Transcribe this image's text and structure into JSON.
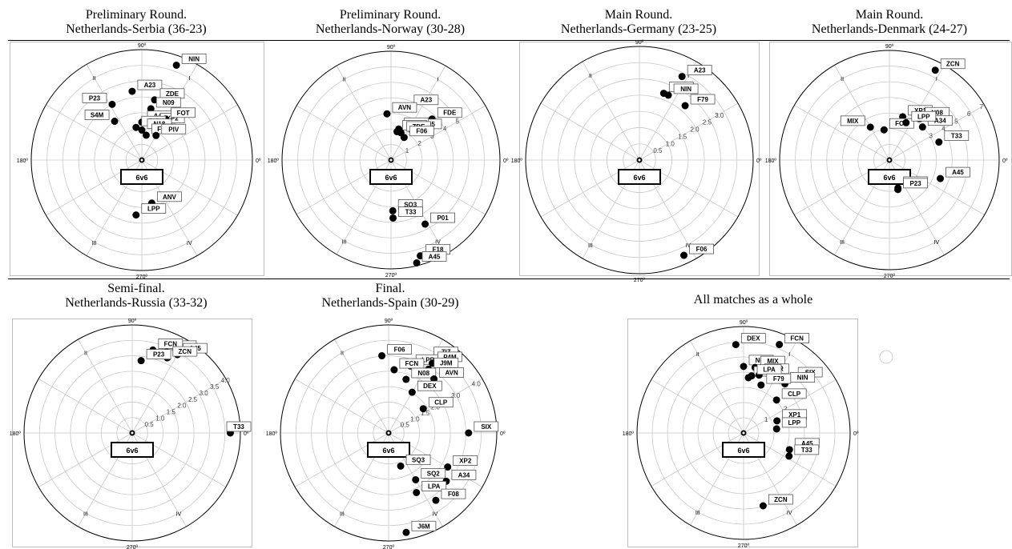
{
  "panels": [
    {
      "title1": "Preliminary Round.",
      "title2": "Netherlands-Serbia (36-23)"
    },
    {
      "title1": "Preliminary Round.",
      "title2": "Netherlands-Norway (30-28)"
    },
    {
      "title1": "Main Round.",
      "title2": "Netherlands-Germany (23-25)"
    },
    {
      "title1": "Main Round.",
      "title2": "Netherlands-Denmark (24-27)"
    },
    {
      "title1": "Semi-final.",
      "title2": "Netherlands-Russia (33-32)"
    },
    {
      "title1": "Final.",
      "title2": "Netherlands-Spain (30-29)"
    },
    {
      "title1": "All matches as a whole",
      "title2": ""
    }
  ],
  "chart_data": [
    {
      "type": "scatter",
      "coordinate_system": "polar",
      "axis_labels": [
        "90º",
        "180º",
        "0º",
        "270º"
      ],
      "quadrant_labels": [
        "I",
        "II",
        "III",
        "IV"
      ],
      "radial_ticks": [],
      "center_label": "6v6",
      "points": [
        {
          "label": "NIN",
          "angle": 70,
          "radius": 6.4
        },
        {
          "label": "A23",
          "angle": 98,
          "radius": 4.4
        },
        {
          "label": "P23",
          "angle": 118,
          "radius": 4.0
        },
        {
          "label": "ZDE",
          "angle": 78,
          "radius": 3.9
        },
        {
          "label": "S4M",
          "angle": 125,
          "radius": 3.0
        },
        {
          "label": "N09",
          "angle": 80,
          "radius": 3.3
        },
        {
          "label": "A45",
          "angle": 90,
          "radius": 2.4
        },
        {
          "label": "XP2",
          "angle": 70,
          "radius": 2.4
        },
        {
          "label": "FOT",
          "angle": 60,
          "radius": 3.0
        },
        {
          "label": "F18",
          "angle": 100,
          "radius": 2.1
        },
        {
          "label": "N18",
          "angle": 90,
          "radius": 1.9
        },
        {
          "label": "FCN",
          "angle": 80,
          "radius": 1.6
        },
        {
          "label": "PIV",
          "angle": 60,
          "radius": 1.8
        },
        {
          "label": "ANV",
          "angle": 283,
          "radius": 2.8
        },
        {
          "label": "LPP",
          "angle": 264,
          "radius": 3.5
        }
      ]
    },
    {
      "type": "scatter",
      "coordinate_system": "polar",
      "axis_labels": [
        "90º",
        "180º",
        "0º",
        "270º"
      ],
      "quadrant_labels": [
        "I",
        "II",
        "III",
        "IV"
      ],
      "radial_ticks": [
        "1",
        "2",
        "3",
        "4",
        "5"
      ],
      "center_label": "6v6",
      "points": [
        {
          "label": "A23",
          "angle": 72,
          "radius": 3.9
        },
        {
          "label": "AVN",
          "angle": 95,
          "radius": 3.2
        },
        {
          "label": "FDE",
          "angle": 45,
          "radius": 4.0
        },
        {
          "label": "F05",
          "angle": 55,
          "radius": 2.5
        },
        {
          "label": "NIN",
          "angle": 76,
          "radius": 2.2
        },
        {
          "label": "N79",
          "angle": 78,
          "radius": 2.0
        },
        {
          "label": "ZDE",
          "angle": 70,
          "radius": 2.0
        },
        {
          "label": "F06",
          "angle": 60,
          "radius": 1.8
        },
        {
          "label": "SQ3",
          "angle": 272,
          "radius": 3.5
        },
        {
          "label": "T33",
          "angle": 272,
          "radius": 4.0
        },
        {
          "label": "P01",
          "angle": 298,
          "radius": 5.0
        },
        {
          "label": "F18",
          "angle": 287,
          "radius": 6.9
        },
        {
          "label": "A45",
          "angle": 284,
          "radius": 7.3
        }
      ]
    },
    {
      "type": "scatter",
      "coordinate_system": "polar",
      "axis_labels": [
        "90º",
        "180º",
        "0º",
        "270º"
      ],
      "quadrant_labels": [
        "I",
        "II",
        "III",
        "IV"
      ],
      "radial_ticks": [
        "0.5",
        "1.0",
        "1.5",
        "2.0",
        "2.5",
        "3.0"
      ],
      "center_label": "6v6",
      "points": [
        {
          "label": "A23",
          "angle": 63,
          "radius": 3.3
        },
        {
          "label": "N79",
          "angle": 70,
          "radius": 2.5
        },
        {
          "label": "NIN",
          "angle": 66,
          "radius": 2.5
        },
        {
          "label": "F79",
          "angle": 50,
          "radius": 2.5
        },
        {
          "label": "F06",
          "angle": 295,
          "radius": 3.7
        }
      ]
    },
    {
      "type": "scatter",
      "coordinate_system": "polar",
      "axis_labels": [
        "90º",
        "180º",
        "0º",
        "270º"
      ],
      "quadrant_labels": [
        "I",
        "II",
        "III",
        "IV"
      ],
      "radial_ticks": [
        "3",
        "4",
        "5",
        "6",
        "7"
      ],
      "center_label": "6v6",
      "points": [
        {
          "label": "ZCN",
          "angle": 63,
          "radius": 6.9
        },
        {
          "label": "XP1",
          "angle": 73,
          "radius": 3.1
        },
        {
          "label": "N08",
          "angle": 54,
          "radius": 3.5
        },
        {
          "label": "A34",
          "angle": 45,
          "radius": 3.2
        },
        {
          "label": "MIX",
          "angle": 120,
          "radius": 2.6
        },
        {
          "label": "FCN",
          "angle": 100,
          "radius": 2.1
        },
        {
          "label": "LPP",
          "angle": 66,
          "radius": 2.8
        },
        {
          "label": "T33",
          "angle": 20,
          "radius": 3.6
        },
        {
          "label": "A45",
          "angle": 340,
          "radius": 3.7
        },
        {
          "label": "N18",
          "angle": 287,
          "radius": 2.0
        },
        {
          "label": "P23",
          "angle": 286,
          "radius": 2.1
        }
      ]
    },
    {
      "type": "scatter",
      "coordinate_system": "polar",
      "axis_labels": [
        "90º",
        "180º",
        "0º",
        "270º"
      ],
      "quadrant_labels": [
        "I",
        "II",
        "III",
        "IV"
      ],
      "radial_ticks": [
        "0.5",
        "1.0",
        "1.5",
        "2.0",
        "2.5",
        "3.0",
        "3.5",
        "4.0"
      ],
      "center_label": "6v6",
      "points": [
        {
          "label": "N79",
          "angle": 67,
          "radius": 3.5
        },
        {
          "label": "A45",
          "angle": 60,
          "radius": 3.6
        },
        {
          "label": "FCN",
          "angle": 76,
          "radius": 3.4
        },
        {
          "label": "ZCN",
          "angle": 65,
          "radius": 3.3
        },
        {
          "label": "P23",
          "angle": 83,
          "radius": 2.9
        },
        {
          "label": "T33",
          "angle": 0,
          "radius": 3.9
        }
      ]
    },
    {
      "type": "scatter",
      "coordinate_system": "polar",
      "axis_labels": [
        "90º",
        "180º",
        "0º",
        "270º"
      ],
      "quadrant_labels": [
        "I",
        "II",
        "III",
        "IV"
      ],
      "radial_ticks": [
        "0.5",
        "1.0",
        "1.5",
        "2.0",
        "2.5",
        "3.0",
        "4.0"
      ],
      "center_label": "6v6",
      "points": [
        {
          "label": "ZIZ",
          "angle": 62,
          "radius": 3.6
        },
        {
          "label": "F06",
          "angle": 95,
          "radius": 3.3
        },
        {
          "label": "LPP",
          "angle": 72,
          "radius": 3.0
        },
        {
          "label": "P4M",
          "angle": 58,
          "radius": 3.5
        },
        {
          "label": "FCN",
          "angle": 85,
          "radius": 2.7
        },
        {
          "label": "J9M",
          "angle": 58,
          "radius": 3.2
        },
        {
          "label": "N08",
          "angle": 72,
          "radius": 2.4
        },
        {
          "label": "AVN",
          "angle": 50,
          "radius": 3.0
        },
        {
          "label": "DEX",
          "angle": 60,
          "radius": 2.0
        },
        {
          "label": "CLP",
          "angle": 35,
          "radius": 1.8
        },
        {
          "label": "SIX",
          "angle": 0,
          "radius": 3.4
        },
        {
          "label": "XP2",
          "angle": 330,
          "radius": 2.9
        },
        {
          "label": "SQ3",
          "angle": 290,
          "radius": 1.5
        },
        {
          "label": "SQ2",
          "angle": 300,
          "radius": 2.3
        },
        {
          "label": "A34",
          "angle": 320,
          "radius": 3.2
        },
        {
          "label": "LPA",
          "angle": 295,
          "radius": 2.8
        },
        {
          "label": "F08",
          "angle": 305,
          "radius": 3.5
        },
        {
          "label": "J6M",
          "angle": 280,
          "radius": 4.3
        }
      ]
    },
    {
      "type": "scatter",
      "coordinate_system": "polar",
      "axis_labels": [
        "90º",
        "180º",
        "0º",
        "270º"
      ],
      "quadrant_labels": [
        "I",
        "II",
        "III",
        "IV"
      ],
      "radial_ticks": [
        "1",
        "2"
      ],
      "center_label": "6v6",
      "points": [
        {
          "label": "DEX",
          "angle": 95,
          "radius": 4.0
        },
        {
          "label": "FCN",
          "angle": 68,
          "radius": 4.3
        },
        {
          "label": "N08",
          "angle": 90,
          "radius": 3.0
        },
        {
          "label": "MIX",
          "angle": 80,
          "radius": 3.0
        },
        {
          "label": "PIV",
          "angle": 85,
          "radius": 2.5
        },
        {
          "label": "OTR",
          "angle": 75,
          "radius": 2.7
        },
        {
          "label": "LPA",
          "angle": 82,
          "radius": 2.6
        },
        {
          "label": "SIX",
          "angle": 48,
          "radius": 3.3
        },
        {
          "label": "NIN",
          "angle": 50,
          "radius": 2.9
        },
        {
          "label": "CLP",
          "angle": 45,
          "radius": 2.1
        },
        {
          "label": "F79",
          "angle": 70,
          "radius": 2.3
        },
        {
          "label": "XP1",
          "angle": 20,
          "radius": 1.6
        },
        {
          "label": "LPP",
          "angle": 7,
          "radius": 1.5
        },
        {
          "label": "A45",
          "angle": 340,
          "radius": 2.2
        },
        {
          "label": "T33",
          "angle": 333,
          "radius": 2.3
        },
        {
          "label": "ZCN",
          "angle": 285,
          "radius": 3.4
        }
      ]
    }
  ]
}
